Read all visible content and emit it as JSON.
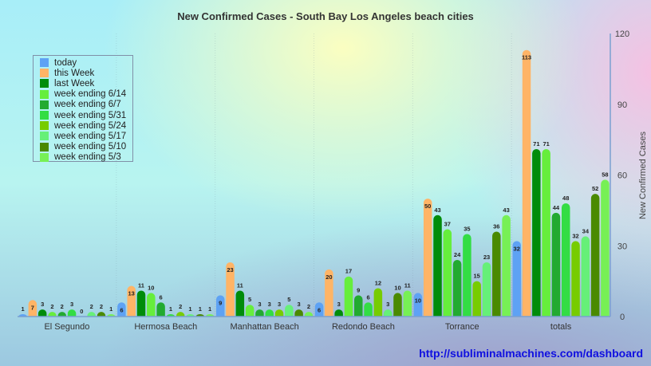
{
  "chart_data": {
    "type": "bar",
    "title": "New Confirmed Cases - South Bay Los Angeles beach cities",
    "xlabel": "",
    "ylabel": "New Confirmed Cases",
    "ylim": [
      0,
      120
    ],
    "yticks": [
      0,
      30,
      60,
      90,
      120
    ],
    "y_axis_side": "right",
    "grid": false,
    "legend_position": "top-left",
    "categories": [
      "El Segundo",
      "Hermosa Beach",
      "Manhattan Beach",
      "Redondo Beach",
      "Torrance",
      "totals"
    ],
    "series": [
      {
        "name": "today",
        "color": "#5ea2f4",
        "values": [
          1,
          6,
          9,
          6,
          10,
          32
        ]
      },
      {
        "name": "this Week",
        "color": "#ffb466",
        "values": [
          7,
          13,
          23,
          20,
          50,
          113
        ]
      },
      {
        "name": "last Week",
        "color": "#008c0a",
        "values": [
          3,
          11,
          11,
          3,
          43,
          71
        ]
      },
      {
        "name": "week ending 6/14",
        "color": "#66ee3c",
        "values": [
          2,
          10,
          5,
          17,
          37,
          71
        ]
      },
      {
        "name": "week ending 6/7",
        "color": "#22aa30",
        "values": [
          2,
          6,
          3,
          9,
          24,
          44
        ]
      },
      {
        "name": "week ending 5/31",
        "color": "#33dd44",
        "values": [
          3,
          1,
          3,
          6,
          35,
          48
        ]
      },
      {
        "name": "week ending 5/24",
        "color": "#77cc00",
        "values": [
          0,
          2,
          3,
          12,
          15,
          32
        ]
      },
      {
        "name": "week ending 5/17",
        "color": "#66f078",
        "values": [
          2,
          1,
          5,
          3,
          23,
          34
        ]
      },
      {
        "name": "week ending 5/10",
        "color": "#4a8a00",
        "values": [
          2,
          1,
          3,
          10,
          36,
          52
        ]
      },
      {
        "name": "week ending 5/3",
        "color": "#77f055",
        "values": [
          1,
          1,
          2,
          11,
          43,
          58
        ]
      }
    ]
  },
  "footer": {
    "url": "http://subliminalmachines.com/dashboard"
  }
}
